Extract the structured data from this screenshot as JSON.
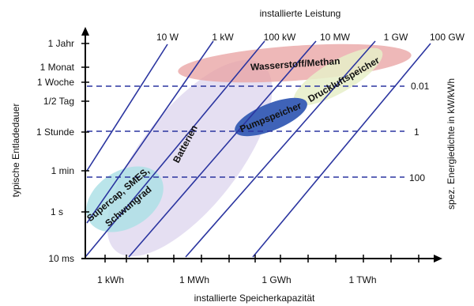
{
  "top_axis_title": "installierte Leistung",
  "bottom_axis_title": "installierte Speicherkapazität",
  "left_axis_title": "typische Entladedauer",
  "right_axis_title": "spez. Energiedichte in kW/kWh",
  "y_ticks": [
    "1 Jahr",
    "1 Monat",
    "1 Woche",
    "1/2 Tag",
    "1 Stunde",
    "1 min",
    "1 s",
    "10 ms"
  ],
  "x_ticks": [
    "1 kWh",
    "1 MWh",
    "1 GWh",
    "1 TWh"
  ],
  "power_labels": [
    "10 W",
    "1 kW",
    "100 kW",
    "10 MW",
    "1 GW",
    "100 GW"
  ],
  "energy_density_labels": [
    "0.01",
    "1",
    "100"
  ],
  "technologies": {
    "hydrogen": "Wasserstoff/Methan",
    "compressed_air": "Druckluftspeicher",
    "pumped_hydro": "Pumpspeicher",
    "batteries": "Batterien",
    "supercap_line1": "Supercap, SMES,",
    "supercap_line2": "Schwungrad"
  },
  "colors": {
    "axis": "#000000",
    "power_lines": "#2b35a0",
    "density_lines": "#2b35a0",
    "hydrogen": "#e8a0a0",
    "compressed_air": "#e6efc8",
    "pumped_hydro": "#3f63b8",
    "batteries": "#dcd4ee",
    "supercap": "#aee0e6"
  }
}
